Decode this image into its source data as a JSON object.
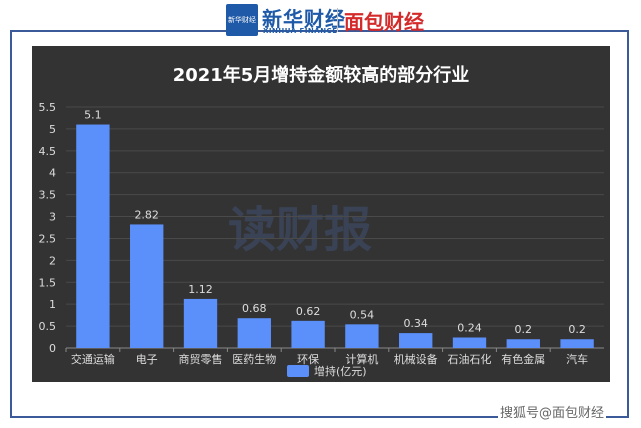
{
  "header": {
    "logo_badge": "新华财经",
    "brand_cn": "新华财经",
    "brand_en": "XINHUA FINANCE",
    "brand_partner": "面包财经"
  },
  "watermark": "读财报",
  "footer": "搜狐号@面包财经",
  "chart_data": {
    "type": "bar",
    "title": "2021年5月增持金额较高的部分行业",
    "categories": [
      "交通运输",
      "电子",
      "商贸零售",
      "医药生物",
      "环保",
      "计算机",
      "机械设备",
      "石油石化",
      "有色金属",
      "汽车"
    ],
    "series": [
      {
        "name": "增持(亿元)",
        "values": [
          5.1,
          2.82,
          1.12,
          0.68,
          0.62,
          0.54,
          0.34,
          0.24,
          0.2,
          0.2
        ]
      }
    ],
    "data_labels": [
      "5.1",
      "2.82",
      "1.12",
      "0.68",
      "0.62",
      "0.54",
      "0.34",
      "0.24",
      "0.2",
      "0.2"
    ],
    "y_ticks": [
      "0",
      "0.5",
      "1",
      "1.5",
      "2",
      "2.5",
      "3",
      "3.5",
      "4",
      "4.5",
      "5",
      "5.5"
    ],
    "ylim": [
      0,
      5.5
    ],
    "grid": true,
    "legend_position": "bottom",
    "bar_color": "#5b8ff9"
  }
}
